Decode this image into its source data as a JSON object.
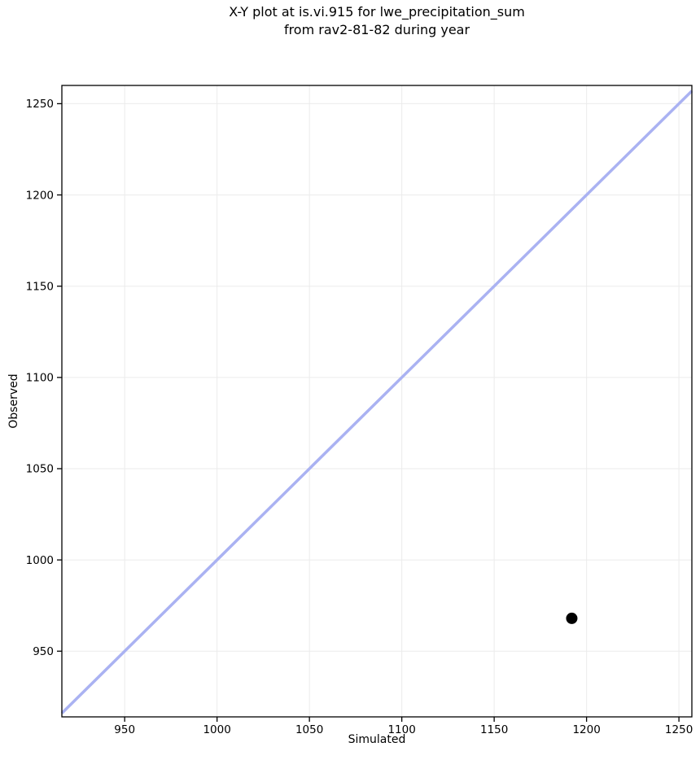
{
  "chart_data": {
    "type": "scatter",
    "title_line1": "X-Y plot at is.vi.915 for lwe_precipitation_sum",
    "title_line2": "from rav2-81-82 during year",
    "title": "X-Y plot at is.vi.915 for lwe_precipitation_sum from rav2-81-82 during year",
    "xlabel": "Simulated",
    "ylabel": "Observed",
    "xlim": [
      916,
      1257
    ],
    "ylim": [
      914,
      1260
    ],
    "xticks": [
      950,
      1000,
      1050,
      1100,
      1150,
      1200,
      1250
    ],
    "yticks": [
      950,
      1000,
      1050,
      1100,
      1150,
      1200,
      1250
    ],
    "grid": true,
    "legend": false,
    "points": [
      {
        "x": 1192,
        "y": 968
      }
    ],
    "identity_line": {
      "slope": 1,
      "intercept": 0
    },
    "colors": {
      "background": "#ffffff",
      "identity_line": "#aab2f2",
      "point": "#000000",
      "grid": "#ebebeb",
      "spine": "#000000",
      "text": "#000000"
    }
  }
}
